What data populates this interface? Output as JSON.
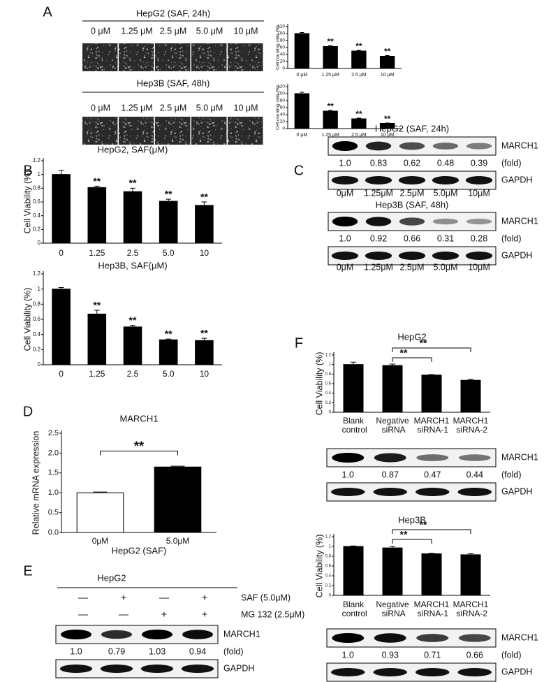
{
  "panels": [
    "A",
    "B",
    "C",
    "D",
    "E",
    "F"
  ],
  "micrographs": [
    {
      "title": "HepG2 (SAF, 24h)",
      "lanes": [
        "0 μM",
        "1.25 μM",
        "2.5 μM",
        "5.0 μM",
        "10 μM"
      ]
    },
    {
      "title": "Hep3B (SAF, 48h)",
      "lanes": [
        "0 μM",
        "1.25 μM",
        "2.5 μM",
        "5.0 μM",
        "10 μM"
      ]
    }
  ],
  "chart_data": [
    {
      "type": "bar",
      "ylabel": "Cell counting ratio (%)",
      "categories": [
        "0 μM",
        "1.25 μM",
        "2.5 μM",
        "10 μM"
      ],
      "values": [
        100,
        63,
        50,
        35
      ],
      "errors": [
        3,
        2,
        2,
        2
      ],
      "color": "#000000",
      "ylim": [
        0,
        120
      ],
      "yticks": [
        0,
        20,
        40,
        60,
        80,
        100,
        120
      ],
      "bar_annotations": [
        null,
        "**",
        "**",
        "**"
      ]
    },
    {
      "type": "bar",
      "ylabel": "Cell counting ratio (%)",
      "categories": [
        "0 μM",
        "1.25 μM",
        "2.5 μM",
        "10 μM"
      ],
      "values": [
        100,
        50,
        28,
        15
      ],
      "errors": [
        4,
        2,
        2,
        1
      ],
      "color": "#000000",
      "ylim": [
        0,
        120
      ],
      "yticks": [
        0,
        20,
        40,
        60,
        80,
        100,
        120
      ],
      "bar_annotations": [
        null,
        "**",
        "**",
        "**"
      ]
    },
    {
      "type": "bar",
      "title": "HepG2, SAF(μM)",
      "ylabel": "Cell Viability (%)",
      "categories": [
        "0",
        "1.25",
        "2.5",
        "5.0",
        "10"
      ],
      "values": [
        1.0,
        0.81,
        0.75,
        0.61,
        0.55
      ],
      "errors": [
        0.06,
        0.02,
        0.05,
        0.03,
        0.05
      ],
      "color": "#000000",
      "ylim": [
        0,
        1.2
      ],
      "yticks": [
        0,
        0.2,
        0.4,
        0.6,
        0.8,
        1,
        1.2
      ],
      "bar_annotations": [
        null,
        "**",
        "**",
        "**",
        "**"
      ]
    },
    {
      "type": "bar",
      "title": "Hep3B, SAF(μM)",
      "ylabel": "Cell Viability (%)",
      "categories": [
        "0",
        "1.25",
        "2.5",
        "5.0",
        "10"
      ],
      "values": [
        1.0,
        0.67,
        0.5,
        0.33,
        0.32
      ],
      "errors": [
        0.02,
        0.05,
        0.02,
        0.01,
        0.03
      ],
      "color": "#000000",
      "ylim": [
        0,
        1.2
      ],
      "yticks": [
        0,
        0.2,
        0.4,
        0.6,
        0.8,
        1,
        1.2
      ],
      "bar_annotations": [
        null,
        "**",
        "**",
        "**",
        "**"
      ]
    },
    {
      "type": "bar",
      "title": "MARCH1",
      "ylabel": "Relative mRNA expression",
      "xlabel": "HepG2 (SAF)",
      "categories": [
        "0μM",
        "5.0μM"
      ],
      "values": [
        1.0,
        1.65
      ],
      "errors": [
        0.02,
        0.02
      ],
      "colors": [
        "#ffffff",
        "#000000"
      ],
      "ylim": [
        0,
        2.5
      ],
      "yticks": [
        {
          "value": 0,
          "label": "0.0"
        },
        0.5,
        {
          "value": 1,
          "label": "1.0"
        },
        1.5,
        {
          "value": 2,
          "label": "2.0"
        },
        2.5
      ],
      "brackets": [
        {
          "from": 0,
          "to": 1,
          "label": "**"
        }
      ]
    },
    {
      "type": "bar",
      "title": "HepG2",
      "ylabel": "Cell Viability (%)",
      "categories": [
        "Blank control",
        "Negative siRNA",
        "MARCH1 siRNA-1",
        "MARCH1 siRNA-2"
      ],
      "values": [
        1.0,
        0.98,
        0.78,
        0.67
      ],
      "errors": [
        0.05,
        0.03,
        0.01,
        0.02
      ],
      "color": "#000000",
      "ylim": [
        0,
        1.2
      ],
      "yticks": [
        0,
        0.2,
        0.4,
        0.6,
        0.8,
        1,
        1.2
      ],
      "brackets": [
        {
          "from": 1,
          "to": 2,
          "label": "**"
        },
        {
          "from": 1,
          "to": 3,
          "label": "**"
        }
      ]
    },
    {
      "type": "bar",
      "title": "Hep3B",
      "ylabel": "Cell Viability (%)",
      "categories": [
        "Blank control",
        "Negative siRNA",
        "MARCH1 siRNA-1",
        "MARCH1 siRNA-2"
      ],
      "values": [
        1.0,
        0.97,
        0.85,
        0.83
      ],
      "errors": [
        0.01,
        0.03,
        0.01,
        0.02
      ],
      "color": "#000000",
      "ylim": [
        0,
        1.2
      ],
      "yticks": [
        0,
        0.2,
        0.4,
        0.6,
        0.8,
        1,
        1.2
      ],
      "brackets": [
        {
          "from": 1,
          "to": 2,
          "label": "**"
        },
        {
          "from": 1,
          "to": 3,
          "label": "**"
        }
      ]
    }
  ],
  "blots": [
    {
      "title": "HepG2 (SAF, 24h)",
      "target": "MARCH1",
      "fold_label": "(fold)",
      "control": "GAPDH",
      "lanes": [
        "0μM",
        "1.25μM",
        "2.5μM",
        "5.0μM",
        "10μM"
      ],
      "values": [
        1.0,
        0.83,
        0.62,
        0.48,
        0.39
      ],
      "value_labels": [
        "1.0",
        "0.83",
        "0.62",
        "0.48",
        "0.39"
      ]
    },
    {
      "title": "Hep3B (SAF, 48h)",
      "target": "MARCH1",
      "fold_label": "(fold)",
      "control": "GAPDH",
      "lanes": [
        "0μM",
        "1.25μM",
        "2.5μM",
        "5.0μM",
        "10μM"
      ],
      "values": [
        1.0,
        0.92,
        0.66,
        0.31,
        0.28
      ],
      "value_labels": [
        "1.0",
        "0.92",
        "0.66",
        "0.31",
        "0.28"
      ]
    },
    {
      "title": "HepG2",
      "treatments": [
        {
          "name": "SAF (5.0μM)",
          "signs": [
            "—",
            "+",
            "—",
            "+"
          ]
        },
        {
          "name": "MG 132 (2.5μM)",
          "signs": [
            "—",
            "—",
            "+",
            "+"
          ]
        }
      ],
      "target": "MARCH1",
      "fold_label": "(fold)",
      "control": "GAPDH",
      "values": [
        1.0,
        0.79,
        1.03,
        0.94
      ],
      "value_labels": [
        "1.0",
        "0.79",
        "1.03",
        "0.94"
      ]
    },
    {
      "target": "MARCH1",
      "fold_label": "(fold)",
      "control": "GAPDH",
      "values": [
        1.0,
        0.87,
        0.47,
        0.44
      ],
      "value_labels": [
        "1.0",
        "0.87",
        "0.47",
        "0.44"
      ]
    },
    {
      "target": "MARCH1",
      "fold_label": "(fold)",
      "control": "GAPDH",
      "values": [
        1.0,
        0.93,
        0.71,
        0.66
      ],
      "value_labels": [
        "1.0",
        "0.93",
        "0.71",
        "0.66"
      ]
    }
  ]
}
